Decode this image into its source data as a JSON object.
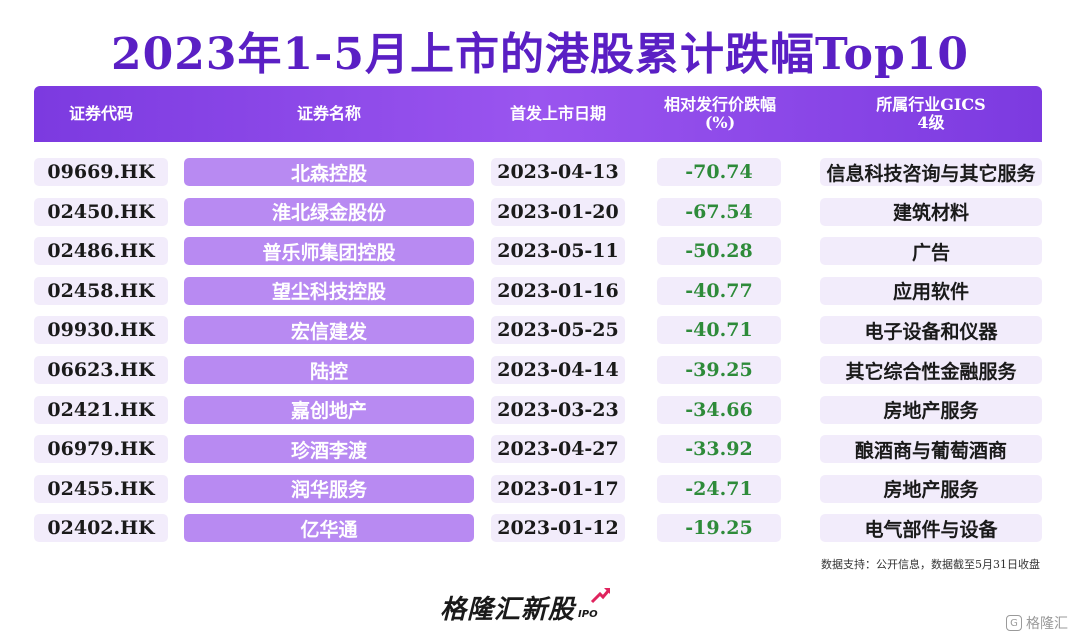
{
  "title": "2023年1-5月上市的港股累计跌幅Top10",
  "headers": {
    "code": "证券代码",
    "name": "证券名称",
    "date": "首发上市日期",
    "pct": "相对发行价跌幅\n(%)",
    "industry": "所属行业GICS\n4级"
  },
  "rows": [
    {
      "code": "09669.HK",
      "name": "北森控股",
      "date": "2023-04-13",
      "pct": "-70.74",
      "industry": "信息科技咨询与其它服务"
    },
    {
      "code": "02450.HK",
      "name": "淮北绿金股份",
      "date": "2023-01-20",
      "pct": "-67.54",
      "industry": "建筑材料"
    },
    {
      "code": "02486.HK",
      "name": "普乐师集团控股",
      "date": "2023-05-11",
      "pct": "-50.28",
      "industry": "广告"
    },
    {
      "code": "02458.HK",
      "name": "望尘科技控股",
      "date": "2023-01-16",
      "pct": "-40.77",
      "industry": "应用软件"
    },
    {
      "code": "09930.HK",
      "name": "宏信建发",
      "date": "2023-05-25",
      "pct": "-40.71",
      "industry": "电子设备和仪器"
    },
    {
      "code": "06623.HK",
      "name": "陆控",
      "date": "2023-04-14",
      "pct": "-39.25",
      "industry": "其它综合性金融服务"
    },
    {
      "code": "02421.HK",
      "name": "嘉创地产",
      "date": "2023-03-23",
      "pct": "-34.66",
      "industry": "房地产服务"
    },
    {
      "code": "06979.HK",
      "name": "珍酒李渡",
      "date": "2023-04-27",
      "pct": "-33.92",
      "industry": "酿酒商与葡萄酒商"
    },
    {
      "code": "02455.HK",
      "name": "润华服务",
      "date": "2023-01-17",
      "pct": "-24.71",
      "industry": "房地产服务"
    },
    {
      "code": "02402.HK",
      "name": "亿华通",
      "date": "2023-01-12",
      "pct": "-19.25",
      "industry": "电气部件与设备"
    }
  ],
  "source": "数据支持：公开信息，数据截至5月31日收盘",
  "brand": {
    "name": "格隆汇新股",
    "sub": "IPO"
  },
  "watermark": "格隆汇",
  "colors": {
    "accent": "#7c3ae0",
    "name_cell": "#b88af2",
    "negative": "#2e8b3a",
    "light_cell": "#f2ecfb"
  }
}
